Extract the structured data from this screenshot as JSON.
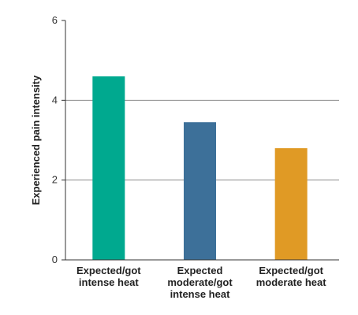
{
  "chart_data": {
    "type": "bar",
    "title": "",
    "xlabel": "",
    "ylabel": "Experienced pain intensity",
    "ylim": [
      0,
      6
    ],
    "yticks": [
      "0",
      "2",
      "4",
      "6"
    ],
    "grid": true,
    "categories": [
      [
        "Expected/got",
        "intense heat"
      ],
      [
        "Expected",
        "moderate/got",
        "intense heat"
      ],
      [
        "Expected/got",
        "moderate heat"
      ]
    ],
    "values": [
      4.6,
      3.45,
      2.8
    ],
    "colors": [
      "#00a98f",
      "#3d7099",
      "#e09a25"
    ],
    "gridline_color": "#8c8c8c",
    "axis_color": "#333333"
  }
}
